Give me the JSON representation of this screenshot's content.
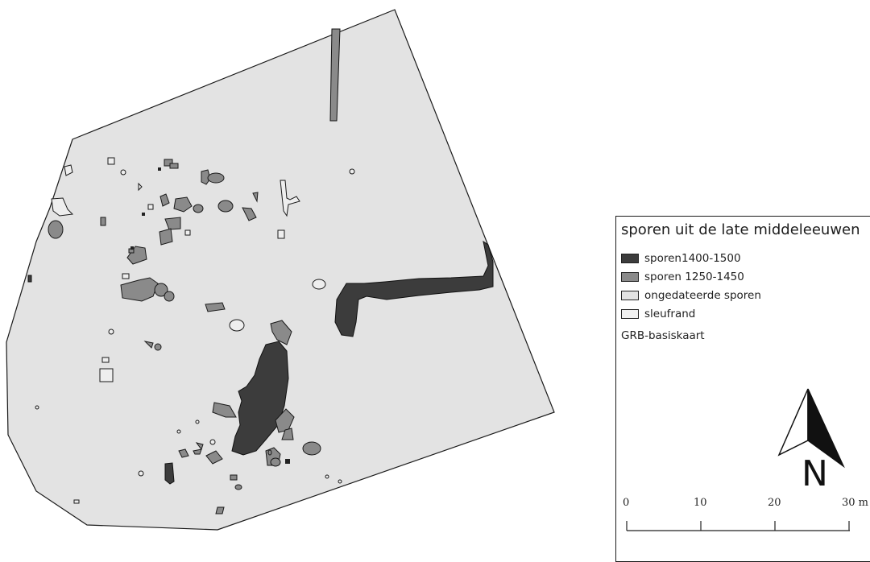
{
  "legend": {
    "title": "sporen uit de late middeleeuwen",
    "items": [
      {
        "label": "sporen1400-1500",
        "fill": "#3c3c3c"
      },
      {
        "label": "sporen 1250-1450",
        "fill": "#8a8a8a"
      },
      {
        "label": "ongedateerde sporen",
        "fill": "#e2e2e2"
      },
      {
        "label": "sleufrand",
        "fill": "#f0f0f0"
      }
    ],
    "base_layer": "GRB-basiskaart"
  },
  "north_arrow": {
    "letter": "N"
  },
  "scale_bar": {
    "ticks": [
      "0",
      "10",
      "20",
      "30 m"
    ]
  },
  "colors": {
    "site": "#e3e3e3",
    "dark_features": "#3c3c3c",
    "medium_features": "#8a8a8a",
    "outline": "#222222"
  }
}
